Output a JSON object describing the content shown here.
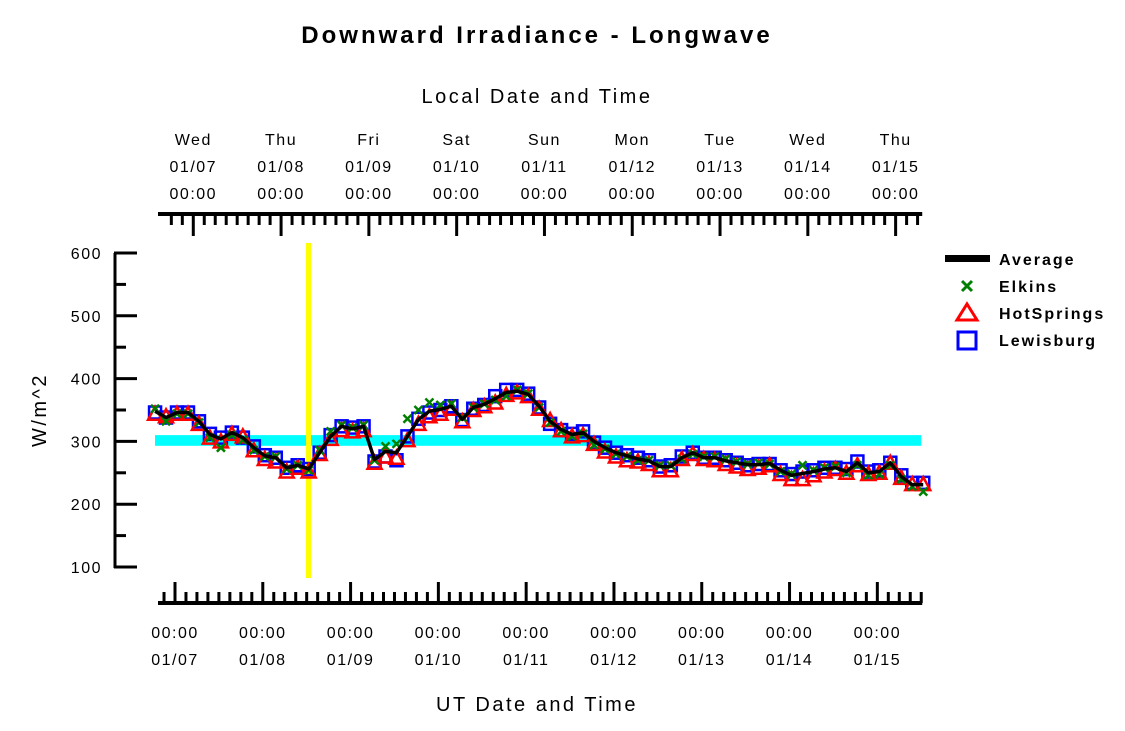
{
  "chart_data": {
    "type": "line",
    "title": "Downward Irradiance - Longwave",
    "top_axis_label": "Local Date and Time",
    "xlabel": "UT Date and Time",
    "ylabel": "W/m^2",
    "ylim": [
      100,
      600
    ],
    "yticks": [
      "600",
      "500",
      "400",
      "300",
      "200",
      "100"
    ],
    "ytick_values": [
      600,
      500,
      400,
      300,
      200,
      100
    ],
    "x_unit": "hours since 01/07 00:00 UT",
    "xlim_hours": [
      -6,
      204
    ],
    "local_offset_hours": -5,
    "top_ticks": [
      {
        "day": "Wed",
        "date": "01/07",
        "time": "00:00"
      },
      {
        "day": "Thu",
        "date": "01/08",
        "time": "00:00"
      },
      {
        "day": "Fri",
        "date": "01/09",
        "time": "00:00"
      },
      {
        "day": "Sat",
        "date": "01/10",
        "time": "00:00"
      },
      {
        "day": "Sun",
        "date": "01/11",
        "time": "00:00"
      },
      {
        "day": "Mon",
        "date": "01/12",
        "time": "00:00"
      },
      {
        "day": "Tue",
        "date": "01/13",
        "time": "00:00"
      },
      {
        "day": "Wed",
        "date": "01/14",
        "time": "00:00"
      },
      {
        "day": "Thu",
        "date": "01/15",
        "time": "00:00"
      }
    ],
    "bottom_ticks": [
      {
        "time": "00:00",
        "date": "01/07"
      },
      {
        "time": "00:00",
        "date": "01/08"
      },
      {
        "time": "00:00",
        "date": "01/09"
      },
      {
        "time": "00:00",
        "date": "01/10"
      },
      {
        "time": "00:00",
        "date": "01/11"
      },
      {
        "time": "00:00",
        "date": "01/12"
      },
      {
        "time": "00:00",
        "date": "01/13"
      },
      {
        "time": "00:00",
        "date": "01/14"
      },
      {
        "time": "00:00",
        "date": "01/15"
      }
    ],
    "x_start_hours": -6,
    "x_step_hours": 3,
    "reference_band": {
      "low": 293,
      "high": 310,
      "color": "#00ffff"
    },
    "marker_line": {
      "hours": 36.5,
      "color": "#ffff00"
    },
    "legend_position": "top-right",
    "series": [
      {
        "name": "Average",
        "style": "line",
        "color": "#000000",
        "values": [
          348,
          338,
          346,
          346,
          332,
          311,
          304,
          314,
          306,
          290,
          277,
          274,
          258,
          262,
          256,
          282,
          308,
          324,
          320,
          324,
          271,
          284,
          282,
          308,
          335,
          348,
          351,
          356,
          335,
          354,
          359,
          368,
          378,
          380,
          375,
          356,
          332,
          319,
          311,
          314,
          300,
          290,
          282,
          277,
          272,
          269,
          260,
          260,
          274,
          282,
          274,
          274,
          269,
          266,
          263,
          263,
          265,
          254,
          246,
          249,
          252,
          256,
          258,
          252,
          266,
          250,
          252,
          266,
          244,
          231,
          231
        ]
      },
      {
        "name": "Elkins",
        "style": "x",
        "color": "#008000",
        "values": [
          352,
          332,
          344,
          344,
          330,
          306,
          290,
          310,
          302,
          286,
          276,
          276,
          256,
          262,
          254,
          286,
          316,
          326,
          322,
          326,
          270,
          292,
          296,
          336,
          350,
          362,
          358,
          360,
          338,
          354,
          360,
          366,
          372,
          382,
          376,
          354,
          330,
          316,
          308,
          312,
          294,
          288,
          280,
          276,
          270,
          270,
          262,
          262,
          272,
          280,
          276,
          276,
          272,
          268,
          264,
          266,
          264,
          252,
          248,
          262,
          254,
          258,
          260,
          250,
          262,
          246,
          248,
          262,
          240,
          228,
          220
        ]
      },
      {
        "name": "HotSprings",
        "style": "triangle",
        "color": "#ff0000",
        "values": [
          344,
          340,
          344,
          344,
          328,
          306,
          300,
          312,
          308,
          286,
          272,
          268,
          252,
          258,
          252,
          280,
          304,
          318,
          316,
          318,
          266,
          276,
          274,
          302,
          328,
          340,
          344,
          352,
          332,
          350,
          356,
          362,
          374,
          378,
          372,
          352,
          334,
          318,
          308,
          310,
          296,
          284,
          276,
          270,
          268,
          264,
          254,
          254,
          272,
          280,
          272,
          270,
          264,
          260,
          256,
          258,
          262,
          248,
          240,
          240,
          246,
          252,
          256,
          250,
          262,
          248,
          250,
          266,
          242,
          232,
          232
        ]
      },
      {
        "name": "Lewisburg",
        "style": "square",
        "color": "#0000ff",
        "values": [
          346,
          338,
          346,
          346,
          332,
          312,
          306,
          314,
          306,
          292,
          278,
          274,
          258,
          262,
          256,
          282,
          310,
          324,
          322,
          324,
          268,
          276,
          270,
          308,
          336,
          346,
          350,
          356,
          334,
          352,
          358,
          372,
          382,
          382,
          376,
          354,
          328,
          318,
          312,
          316,
          298,
          290,
          282,
          278,
          274,
          270,
          260,
          262,
          276,
          282,
          274,
          274,
          270,
          266,
          262,
          264,
          264,
          254,
          248,
          252,
          254,
          258,
          258,
          256,
          268,
          252,
          254,
          266,
          246,
          234,
          234
        ]
      }
    ]
  }
}
